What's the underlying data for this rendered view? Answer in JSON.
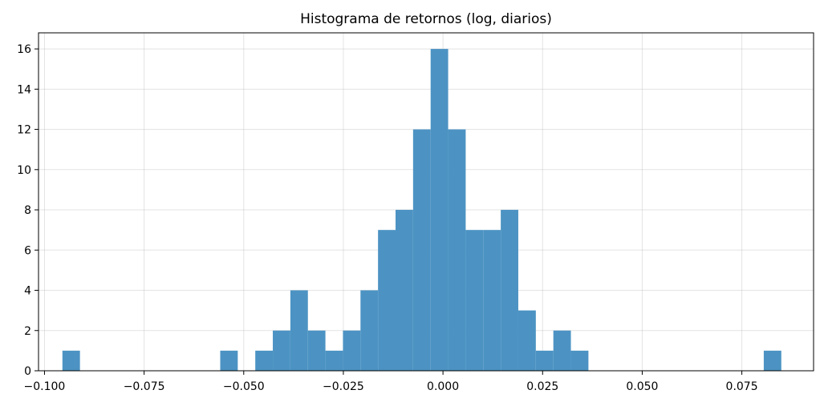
{
  "chart_data": {
    "type": "bar",
    "title": "Histograma de retornos (log, diarios)",
    "xlabel": "",
    "ylabel": "",
    "bin_width": 0.0044,
    "bins": [
      {
        "x0": -0.0955,
        "count": 1
      },
      {
        "x0": -0.0911,
        "count": 0
      },
      {
        "x0": -0.0867,
        "count": 0
      },
      {
        "x0": -0.0823,
        "count": 0
      },
      {
        "x0": -0.0779,
        "count": 0
      },
      {
        "x0": -0.0735,
        "count": 0
      },
      {
        "x0": -0.0691,
        "count": 0
      },
      {
        "x0": -0.0647,
        "count": 0
      },
      {
        "x0": -0.0603,
        "count": 0
      },
      {
        "x0": -0.0559,
        "count": 1
      },
      {
        "x0": -0.0515,
        "count": 0
      },
      {
        "x0": -0.0471,
        "count": 1
      },
      {
        "x0": -0.0427,
        "count": 2
      },
      {
        "x0": -0.0383,
        "count": 4
      },
      {
        "x0": -0.0339,
        "count": 2
      },
      {
        "x0": -0.0295,
        "count": 1
      },
      {
        "x0": -0.0251,
        "count": 2
      },
      {
        "x0": -0.0207,
        "count": 4
      },
      {
        "x0": -0.0163,
        "count": 7
      },
      {
        "x0": -0.0119,
        "count": 8
      },
      {
        "x0": -0.0075,
        "count": 12
      },
      {
        "x0": -0.0031,
        "count": 16
      },
      {
        "x0": 0.0013,
        "count": 12
      },
      {
        "x0": 0.0057,
        "count": 7
      },
      {
        "x0": 0.0101,
        "count": 7
      },
      {
        "x0": 0.0145,
        "count": 8
      },
      {
        "x0": 0.0189,
        "count": 3
      },
      {
        "x0": 0.0233,
        "count": 1
      },
      {
        "x0": 0.0277,
        "count": 2
      },
      {
        "x0": 0.0321,
        "count": 1
      },
      {
        "x0": 0.0365,
        "count": 0
      },
      {
        "x0": 0.0409,
        "count": 0
      },
      {
        "x0": 0.0453,
        "count": 0
      },
      {
        "x0": 0.0497,
        "count": 0
      },
      {
        "x0": 0.0541,
        "count": 0
      },
      {
        "x0": 0.0585,
        "count": 0
      },
      {
        "x0": 0.0629,
        "count": 0
      },
      {
        "x0": 0.0673,
        "count": 0
      },
      {
        "x0": 0.0717,
        "count": 0
      },
      {
        "x0": 0.0761,
        "count": 0
      },
      {
        "x0": 0.0805,
        "count": 1
      }
    ],
    "xlim": [
      -0.1015,
      0.093
    ],
    "ylim": [
      0,
      16.8
    ],
    "xticks": [
      -0.1,
      -0.075,
      -0.05,
      -0.025,
      0.0,
      0.025,
      0.05,
      0.075
    ],
    "xtick_labels": [
      "−0.100",
      "−0.075",
      "−0.050",
      "−0.025",
      "0.000",
      "0.025",
      "0.050",
      "0.075"
    ],
    "yticks": [
      0,
      2,
      4,
      6,
      8,
      10,
      12,
      14,
      16
    ],
    "ytick_labels": [
      "0",
      "2",
      "4",
      "6",
      "8",
      "10",
      "12",
      "14",
      "16"
    ],
    "grid": true,
    "bar_color": "#4c93c3"
  }
}
